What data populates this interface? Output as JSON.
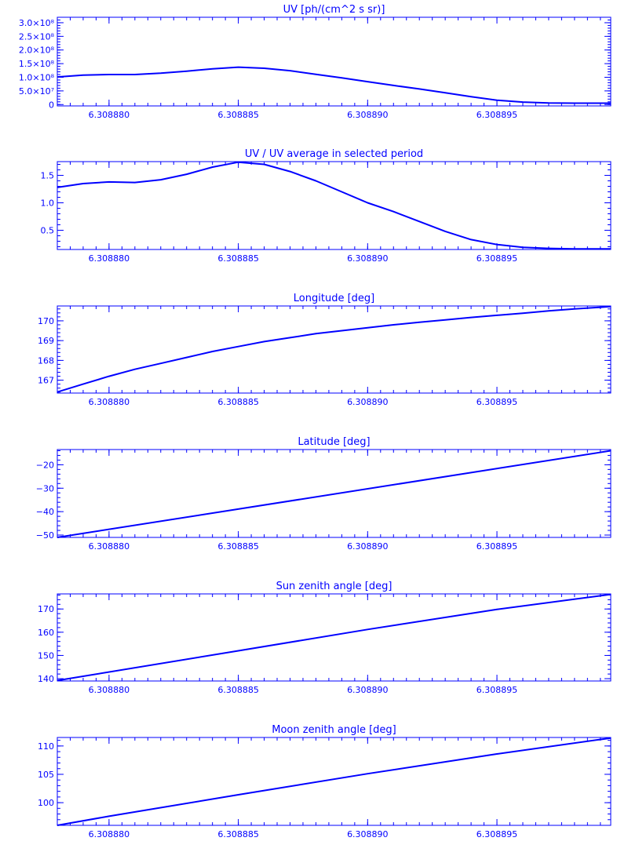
{
  "chart_data": [
    {
      "type": "line",
      "title": "UV [ph/(cm^2 s sr)]",
      "xlabel": "",
      "ylabel": "",
      "xlim": [
        6.308878,
        6.3088994
      ],
      "ylim": [
        -5000000,
        320000000
      ],
      "x_ticks": [
        6.30888,
        6.308885,
        6.30889,
        6.308895
      ],
      "x_tick_labels": [
        "6.308880",
        "6.308885",
        "6.308890",
        "6.308895"
      ],
      "y_ticks": [
        0,
        50000000,
        100000000,
        150000000,
        200000000,
        250000000,
        300000000
      ],
      "y_tick_labels": [
        "0",
        "5.0×10⁷",
        "1.0×10⁸",
        "1.5×10⁸",
        "2.0×10⁸",
        "2.5×10⁸",
        "3.0×10⁸"
      ],
      "series": [
        {
          "x": [
            6.308878,
            6.308879,
            6.30888,
            6.308881,
            6.308882,
            6.308883,
            6.308884,
            6.308885,
            6.308886,
            6.308887,
            6.308888,
            6.308889,
            6.30889,
            6.308891,
            6.308892,
            6.308893,
            6.308894,
            6.308895,
            6.308896,
            6.308897,
            6.308898,
            6.3088994
          ],
          "values": [
            101000000,
            108000000,
            110000000,
            110000000,
            115000000,
            122000000,
            131000000,
            137000000,
            133000000,
            124000000,
            111000000,
            98000000,
            84000000,
            70000000,
            57000000,
            43000000,
            29000000,
            16000000,
            9000000,
            6000000,
            5000000,
            5000000
          ]
        }
      ]
    },
    {
      "type": "line",
      "title": "UV / UV average in selected period",
      "xlabel": "",
      "ylabel": "",
      "xlim": [
        6.308878,
        6.3088994
      ],
      "ylim": [
        0.15,
        1.75
      ],
      "x_ticks": [
        6.30888,
        6.308885,
        6.30889,
        6.308895
      ],
      "x_tick_labels": [
        "6.308880",
        "6.308885",
        "6.308890",
        "6.308895"
      ],
      "y_ticks": [
        0.5,
        1.0,
        1.5
      ],
      "y_tick_labels": [
        "0.5",
        "1.0",
        "1.5"
      ],
      "series": [
        {
          "x": [
            6.308878,
            6.308879,
            6.30888,
            6.308881,
            6.308882,
            6.308883,
            6.308884,
            6.308885,
            6.308886,
            6.308887,
            6.308888,
            6.308889,
            6.30889,
            6.308891,
            6.308892,
            6.308893,
            6.308894,
            6.308895,
            6.308896,
            6.308897,
            6.308898,
            6.3088994
          ],
          "values": [
            1.28,
            1.35,
            1.38,
            1.37,
            1.42,
            1.52,
            1.65,
            1.74,
            1.7,
            1.57,
            1.4,
            1.2,
            1.0,
            0.84,
            0.66,
            0.48,
            0.33,
            0.24,
            0.19,
            0.17,
            0.16,
            0.16
          ]
        }
      ]
    },
    {
      "type": "line",
      "title": "Longitude [deg]",
      "xlabel": "",
      "ylabel": "",
      "xlim": [
        6.308878,
        6.3088994
      ],
      "ylim": [
        166.35,
        170.75
      ],
      "x_ticks": [
        6.30888,
        6.308885,
        6.30889,
        6.308895
      ],
      "x_tick_labels": [
        "6.308880",
        "6.308885",
        "6.308890",
        "6.308895"
      ],
      "y_ticks": [
        167,
        168,
        169,
        170
      ],
      "y_tick_labels": [
        "167",
        "168",
        "169",
        "170"
      ],
      "series": [
        {
          "x": [
            6.308878,
            6.308879,
            6.30888,
            6.308881,
            6.308882,
            6.308883,
            6.308884,
            6.308885,
            6.308886,
            6.308887,
            6.308888,
            6.308889,
            6.30889,
            6.308891,
            6.308892,
            6.308893,
            6.308894,
            6.308895,
            6.308896,
            6.308897,
            6.308898,
            6.3088994
          ],
          "values": [
            166.4,
            166.8,
            167.2,
            167.55,
            167.85,
            168.15,
            168.45,
            168.7,
            168.95,
            169.15,
            169.35,
            169.5,
            169.65,
            169.8,
            169.93,
            170.05,
            170.17,
            170.28,
            170.38,
            170.5,
            170.6,
            170.72
          ]
        }
      ]
    },
    {
      "type": "line",
      "title": "Latitude [deg]",
      "xlabel": "",
      "ylabel": "",
      "xlim": [
        6.308878,
        6.3088994
      ],
      "ylim": [
        -51,
        -13.5
      ],
      "x_ticks": [
        6.30888,
        6.308885,
        6.30889,
        6.308895
      ],
      "x_tick_labels": [
        "6.308880",
        "6.308885",
        "6.308890",
        "6.308895"
      ],
      "y_ticks": [
        -50,
        -40,
        -30,
        -20
      ],
      "y_tick_labels": [
        "−50",
        "−40",
        "−30",
        "−20"
      ],
      "series": [
        {
          "x": [
            6.308878,
            6.3088994
          ],
          "values": [
            -51,
            -14
          ]
        }
      ]
    },
    {
      "type": "line",
      "title": "Sun zenith angle [deg]",
      "xlabel": "",
      "ylabel": "",
      "xlim": [
        6.308878,
        6.3088994
      ],
      "ylim": [
        139,
        176.5
      ],
      "x_ticks": [
        6.30888,
        6.308885,
        6.30889,
        6.308895
      ],
      "x_tick_labels": [
        "6.308880",
        "6.308885",
        "6.308890",
        "6.308895"
      ],
      "y_ticks": [
        140,
        150,
        160,
        170
      ],
      "y_tick_labels": [
        "140",
        "150",
        "160",
        "170"
      ],
      "series": [
        {
          "x": [
            6.308878,
            6.308885,
            6.30889,
            6.308895,
            6.3088994
          ],
          "values": [
            139.2,
            152.0,
            161.2,
            169.8,
            176.3
          ]
        }
      ]
    },
    {
      "type": "line",
      "title": "Moon zenith angle [deg]",
      "xlabel": "",
      "ylabel": "",
      "xlim": [
        6.308878,
        6.3088994
      ],
      "ylim": [
        96,
        111.5
      ],
      "x_ticks": [
        6.30888,
        6.308885,
        6.30889,
        6.308895
      ],
      "x_tick_labels": [
        "6.308880",
        "6.308885",
        "6.308890",
        "6.308895"
      ],
      "y_ticks": [
        100,
        105,
        110
      ],
      "y_tick_labels": [
        "100",
        "105",
        "110"
      ],
      "series": [
        {
          "x": [
            6.308878,
            6.30888,
            6.308885,
            6.30889,
            6.308895,
            6.3088994
          ],
          "values": [
            96.0,
            97.6,
            101.4,
            105.1,
            108.6,
            111.4
          ]
        }
      ]
    }
  ]
}
